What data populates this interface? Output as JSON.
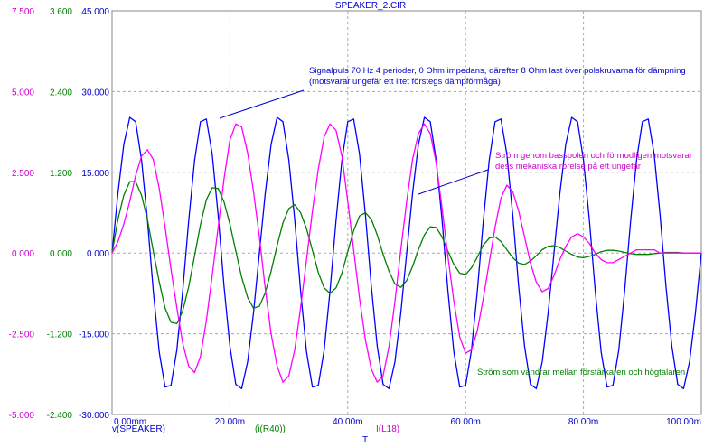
{
  "chart_data": {
    "type": "line",
    "title": "SPEAKER_2.CIR",
    "xlabel": "T",
    "xlim": [
      0,
      100
    ],
    "x_ticks": [
      "0.00mm",
      "20.00m",
      "40.00m",
      "60.00m",
      "80.00m",
      "100.00m"
    ],
    "axes": [
      {
        "name": "left-outer",
        "color": "#cc00cc",
        "ylim": [
          -5,
          7.5
        ],
        "ticks": [
          "7.500",
          "5.000",
          "2.500",
          "0.000",
          "-2.500",
          "-5.000"
        ]
      },
      {
        "name": "left-middle",
        "color": "#008000",
        "ylim": [
          -2.4,
          3.6
        ],
        "ticks": [
          "3.600",
          "2.400",
          "1.200",
          "0.000",
          "-1.200",
          "-2.400"
        ]
      },
      {
        "name": "left-inner",
        "color": "#0000cc",
        "ylim": [
          -30,
          45
        ],
        "ticks": [
          "45.000",
          "30.000",
          "15.000",
          "0.000",
          "-15.000",
          "-30.000"
        ]
      }
    ],
    "series": [
      {
        "name": "v(SPEAKER)",
        "color": "#0000ff",
        "axis": 2,
        "x": [
          0,
          1,
          2,
          3,
          4,
          5,
          6,
          7,
          8,
          9,
          10,
          11,
          12,
          13,
          14,
          15,
          16,
          17,
          18,
          19,
          20,
          21,
          22,
          23,
          24,
          25,
          26,
          27,
          28,
          29,
          30,
          31,
          32,
          33,
          34,
          35,
          36,
          37,
          38,
          39,
          40,
          41,
          42,
          43,
          44,
          45,
          46,
          47,
          48,
          49,
          50,
          51,
          52,
          53,
          54,
          55,
          56,
          57,
          58,
          59,
          60,
          61,
          62,
          63,
          64,
          65,
          66,
          67,
          68,
          69,
          70,
          71,
          72,
          73,
          74,
          75,
          76,
          77,
          78,
          79,
          80,
          81,
          82,
          83,
          84,
          85,
          86,
          87,
          88,
          89,
          90,
          91,
          92,
          93,
          94,
          95,
          96,
          97,
          98,
          99,
          100
        ],
        "y": [
          0,
          11.1,
          20.2,
          25.2,
          24.4,
          17.3,
          6.2,
          -7.0,
          -18.4,
          -24.9,
          -24.6,
          -18.0,
          -7.0,
          6.0,
          17.2,
          24.4,
          24.9,
          18.4,
          7.0,
          -6.2,
          -17.3,
          -24.4,
          -25.2,
          -20.2,
          -11.1,
          0,
          11.1,
          20.2,
          25.2,
          24.4,
          17.3,
          6.2,
          -7.0,
          -18.4,
          -24.9,
          -24.6,
          -18.0,
          -7.0,
          6.0,
          17.2,
          24.4,
          24.9,
          18.4,
          7.0,
          -6.2,
          -17.3,
          -24.4,
          -25.2,
          -20.2,
          -11.1,
          0,
          11.1,
          20.2,
          25.2,
          24.4,
          17.3,
          6.2,
          -7.0,
          -18.4,
          -24.9,
          -24.6,
          -18.0,
          -7.0,
          6.0,
          17.2,
          24.4,
          24.9,
          18.4,
          7.0,
          -6.2,
          -17.3,
          -24.4,
          -25.2,
          -20.2,
          -11.1,
          0,
          11.1,
          20.2,
          25.2,
          24.4,
          17.3,
          6.2,
          -7.0,
          -18.4,
          -24.9,
          -24.6,
          -18.0,
          -7.0,
          6.0,
          17.2,
          24.4,
          24.9,
          18.4,
          7.0,
          -6.2,
          -17.3,
          -24.4,
          -25.2,
          -20.2,
          -11.1,
          0
        ]
      },
      {
        "name": "(i(R40))",
        "color": "#008000",
        "axis": 1,
        "x": [
          0,
          1,
          2,
          3,
          4,
          5,
          6,
          7,
          8,
          9,
          10,
          11,
          12,
          13,
          14,
          15,
          16,
          17,
          18,
          19,
          20,
          21,
          22,
          23,
          24,
          25,
          26,
          27,
          28,
          29,
          30,
          31,
          32,
          33,
          34,
          35,
          36,
          37,
          38,
          39,
          40,
          41,
          42,
          43,
          44,
          45,
          46,
          47,
          48,
          49,
          50,
          51,
          52,
          53,
          54,
          55,
          56,
          57,
          58,
          59,
          60,
          61,
          62,
          63,
          64,
          65,
          66,
          67,
          68,
          69,
          70,
          71,
          72,
          73,
          74,
          75,
          76,
          77,
          78,
          79,
          80,
          81,
          82,
          83,
          84,
          85,
          86,
          87,
          88,
          89,
          90,
          91,
          92,
          93,
          94,
          95,
          96,
          97,
          98,
          99,
          100
        ],
        "y": [
          0,
          0.5,
          0.86,
          1.06,
          1.06,
          0.86,
          0.5,
          0.03,
          -0.43,
          -0.82,
          -1.03,
          -1.05,
          -0.86,
          -0.5,
          -0.04,
          0.42,
          0.79,
          0.97,
          0.96,
          0.76,
          0.43,
          0.03,
          -0.36,
          -0.66,
          -0.82,
          -0.79,
          -0.59,
          -0.27,
          0.11,
          0.45,
          0.66,
          0.72,
          0.6,
          0.36,
          0.04,
          -0.29,
          -0.52,
          -0.6,
          -0.52,
          -0.3,
          0.02,
          0.33,
          0.55,
          0.6,
          0.5,
          0.27,
          -0.02,
          -0.27,
          -0.46,
          -0.51,
          -0.41,
          -0.2,
          0.05,
          0.27,
          0.39,
          0.38,
          0.24,
          0.03,
          -0.17,
          -0.3,
          -0.32,
          -0.22,
          -0.06,
          0.12,
          0.22,
          0.24,
          0.17,
          0.05,
          -0.07,
          -0.15,
          -0.17,
          -0.12,
          -0.04,
          0.05,
          0.1,
          0.11,
          0.08,
          0.03,
          -0.02,
          -0.06,
          -0.07,
          -0.05,
          -0.02,
          0.02,
          0.04,
          0.04,
          0.03,
          0.01,
          -0.01,
          -0.02,
          -0.02,
          -0.02,
          -0.01,
          0,
          0.01,
          0.01,
          0.01,
          0,
          0,
          0,
          0
        ]
      },
      {
        "name": "I(L18)",
        "color": "#ff00ff",
        "axis": 0,
        "x": [
          0,
          1,
          2,
          3,
          4,
          5,
          6,
          7,
          8,
          9,
          10,
          11,
          12,
          13,
          14,
          15,
          16,
          17,
          18,
          19,
          20,
          21,
          22,
          23,
          24,
          25,
          26,
          27,
          28,
          29,
          30,
          31,
          32,
          33,
          34,
          35,
          36,
          37,
          38,
          39,
          40,
          41,
          42,
          43,
          44,
          45,
          46,
          47,
          48,
          49,
          50,
          51,
          52,
          53,
          54,
          55,
          56,
          57,
          58,
          59,
          60,
          61,
          62,
          63,
          64,
          65,
          66,
          67,
          68,
          69,
          70,
          71,
          72,
          73,
          74,
          75,
          76,
          77,
          78,
          79,
          80,
          81,
          82,
          83,
          84,
          85,
          86,
          87,
          88,
          89,
          90,
          91,
          92,
          93,
          94,
          95,
          96,
          97,
          98,
          99,
          100
        ],
        "y": [
          0,
          0.35,
          0.9,
          1.6,
          2.4,
          3.0,
          3.2,
          2.9,
          2.0,
          0.8,
          -0.5,
          -1.7,
          -2.8,
          -3.5,
          -3.7,
          -3.2,
          -2.1,
          -0.7,
          0.8,
          2.3,
          3.5,
          4.0,
          3.9,
          3.1,
          1.9,
          0.5,
          -1.1,
          -2.5,
          -3.5,
          -4.0,
          -3.8,
          -3.0,
          -1.7,
          -0.2,
          1.3,
          2.6,
          3.6,
          4.0,
          3.8,
          3.0,
          1.6,
          0.1,
          -1.4,
          -2.7,
          -3.6,
          -4.0,
          -3.8,
          -2.9,
          -1.5,
          0.1,
          1.6,
          2.9,
          3.7,
          4.0,
          3.7,
          2.8,
          1.4,
          -0.1,
          -1.5,
          -2.6,
          -3.1,
          -3.0,
          -2.4,
          -1.4,
          -0.3,
          0.8,
          1.7,
          2.1,
          1.9,
          1.3,
          0.5,
          -0.3,
          -0.9,
          -1.2,
          -1.1,
          -0.7,
          -0.2,
          0.2,
          0.5,
          0.6,
          0.5,
          0.3,
          0,
          -0.2,
          -0.3,
          -0.3,
          -0.2,
          -0.1,
          0,
          0.1,
          0.1,
          0.1,
          0.1,
          0,
          0,
          0,
          0,
          0,
          0,
          0,
          0
        ]
      }
    ],
    "annotations": [
      {
        "text": "Signalpuls 70 Hz 4 perioder, 0 Ohm impedans, därefter  8 Ohm last över polskruvarna för dämpning",
        "color": "#0000cc"
      },
      {
        "text": "(motsvarar ungefär ett litet förstegs dämpförmåga)",
        "color": "#0000cc"
      },
      {
        "text": "Ström genom basspolen och förmodligen motsvarar",
        "color": "#cc00cc"
      },
      {
        "text": "dess mekaniska rörelse på ett ungefär",
        "color": "#cc00cc"
      },
      {
        "text": "Ström som vandrar mellan förstärkaren och högtalaren",
        "color": "#008000"
      }
    ],
    "grid": true,
    "grid_color": "#a8a8a8"
  }
}
